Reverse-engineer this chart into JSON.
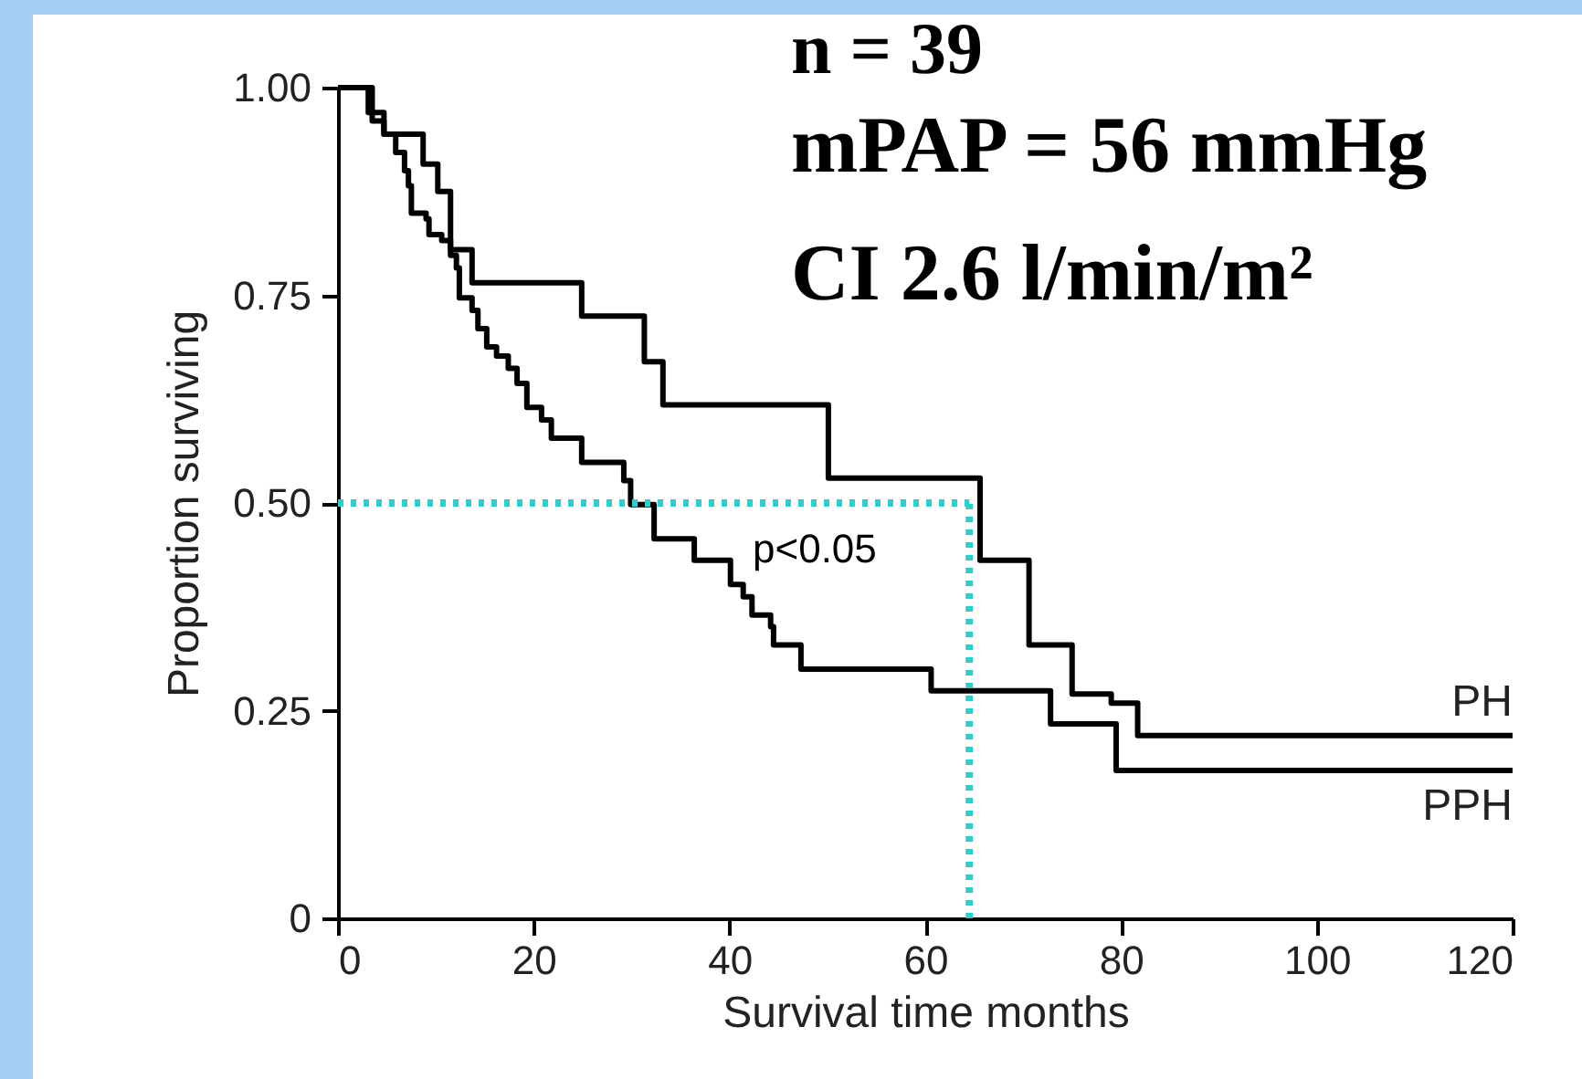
{
  "chart_data": {
    "type": "step",
    "xlabel": "Survival time  months",
    "ylabel": "Proportion surviving",
    "xlim": [
      0,
      120
    ],
    "xticks": [
      0,
      20,
      40,
      60,
      80,
      100,
      120
    ],
    "ylim": [
      0,
      1
    ],
    "yticks": [
      0,
      {
        "value": 0.25,
        "label": "0.25"
      },
      {
        "value": 0.5,
        "label": "0.50"
      },
      {
        "value": 0.75,
        "label": "0.75"
      },
      {
        "value": 1,
        "label": "1.00"
      }
    ],
    "series": [
      {
        "name": "PH",
        "color": "#000000",
        "x": [
          0,
          3.5,
          4.7,
          8.7,
          10.2,
          11.5,
          13.7,
          24.9,
          31.3,
          33.2,
          50.1,
          65.6,
          70.6,
          75,
          79,
          81.7,
          120
        ],
        "values": [
          1,
          0.96,
          0.944,
          0.908,
          0.875,
          0.805,
          0.765,
          0.725,
          0.67,
          0.618,
          0.53,
          0.431,
          0.329,
          0.27,
          0.259,
          0.22,
          0.22
        ]
      },
      {
        "name": "PPH",
        "color": "#000000",
        "x": [
          0,
          3.1,
          4.7,
          5.9,
          6.8,
          7.2,
          7.5,
          9,
          9.3,
          10.6,
          11.5,
          12.1,
          12.4,
          13.7,
          14.3,
          15.2,
          16.2,
          17.4,
          18.3,
          19.3,
          20.8,
          21.8,
          24.9,
          29.2,
          29.9,
          32.3,
          36.4,
          40.1,
          41.4,
          42.3,
          44.2,
          44.5,
          47.3,
          60.6,
          72.8,
          79.5,
          120
        ],
        "values": [
          1,
          0.97,
          0.944,
          0.922,
          0.9,
          0.882,
          0.849,
          0.842,
          0.823,
          0.816,
          0.798,
          0.783,
          0.747,
          0.732,
          0.71,
          0.688,
          0.677,
          0.662,
          0.644,
          0.615,
          0.6,
          0.578,
          0.549,
          0.527,
          0.498,
          0.457,
          0.431,
          0.402,
          0.387,
          0.365,
          0.351,
          0.329,
          0.3,
          0.274,
          0.234,
          0.178,
          0.178
        ]
      }
    ],
    "ref_lines": [
      {
        "axis": "y",
        "value": 0.5,
        "color": "#33cccc",
        "line_style": "dotted"
      },
      {
        "axis": "x",
        "value": 64.5,
        "color": "#33cccc",
        "line_style": "dotted"
      }
    ],
    "annotations": [
      "n = 39",
      "mPAP = 56 mmHg",
      "CI 2.6 l/min/m²",
      "p<0.05"
    ]
  }
}
